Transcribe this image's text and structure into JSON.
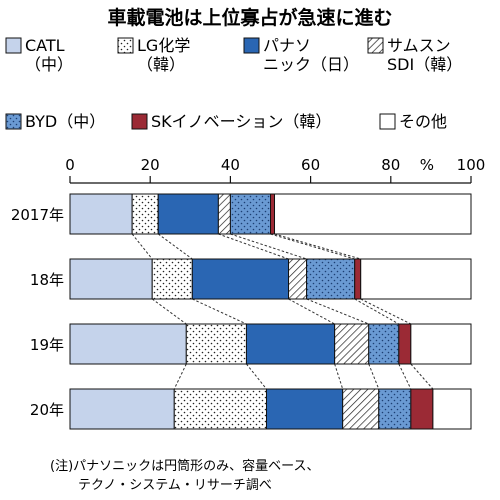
{
  "colors": {
    "CATL": "#c5d3eb",
    "LG": "#ffffff",
    "Panasonic": "#2a66b3",
    "Samsung": "#ffffff",
    "BYD": "#6a9ad3",
    "SK": "#9b2a35",
    "Other": "#ffffff"
  },
  "chart_data": {
    "type": "bar",
    "orientation": "horizontal-stacked-percent",
    "title": "車載電池は上位寡占が急速に進む",
    "unit_label": "%",
    "xlim": [
      0,
      100
    ],
    "x_ticks": [
      "0",
      "20",
      "40",
      "60",
      "80",
      "100"
    ],
    "categories": [
      "2017年",
      "18年",
      "19年",
      "20年"
    ],
    "series": [
      {
        "key": "CATL",
        "name": "CATL（中）",
        "legend_lines": [
          "CATL",
          "（中）"
        ],
        "pattern": "solid",
        "values": [
          15.5,
          20.5,
          29,
          26
        ]
      },
      {
        "key": "LG",
        "name": "LG化学（韓）",
        "legend_lines": [
          "LG化学",
          "（韓）"
        ],
        "pattern": "dots",
        "values": [
          6.5,
          10,
          15,
          23
        ]
      },
      {
        "key": "Panasonic",
        "name": "パナソニック（日）",
        "legend_lines": [
          "パナソ",
          "ニック（日）"
        ],
        "pattern": "solid",
        "values": [
          15,
          24,
          22,
          19
        ]
      },
      {
        "key": "Samsung",
        "name": "サムスンSDI（韓）",
        "legend_lines": [
          "サムスン",
          "SDI（韓）"
        ],
        "pattern": "hatch",
        "values": [
          3,
          4.5,
          8.5,
          9
        ]
      },
      {
        "key": "BYD",
        "name": "BYD（中）",
        "legend_lines": [
          "BYD（中）"
        ],
        "pattern": "dots-on-blue",
        "values": [
          10,
          12,
          7.5,
          8
        ]
      },
      {
        "key": "SK",
        "name": "SKイノベーション（韓）",
        "legend_lines": [
          "SKイノベーション（韓）"
        ],
        "pattern": "solid",
        "values": [
          1,
          1.5,
          3,
          5.5
        ]
      },
      {
        "key": "Other",
        "name": "その他",
        "legend_lines": [
          "その他"
        ],
        "pattern": "solid",
        "values": [
          49,
          27.5,
          15,
          9.5
        ]
      }
    ],
    "connectors": "dashed lines between segment boundaries of consecutive bars",
    "grid": false,
    "legend_position": "top",
    "note_lines": [
      "(注)パナソニックは円筒形のみ、容量ベース、",
      "テクノ・システム・リサーチ調べ"
    ]
  }
}
